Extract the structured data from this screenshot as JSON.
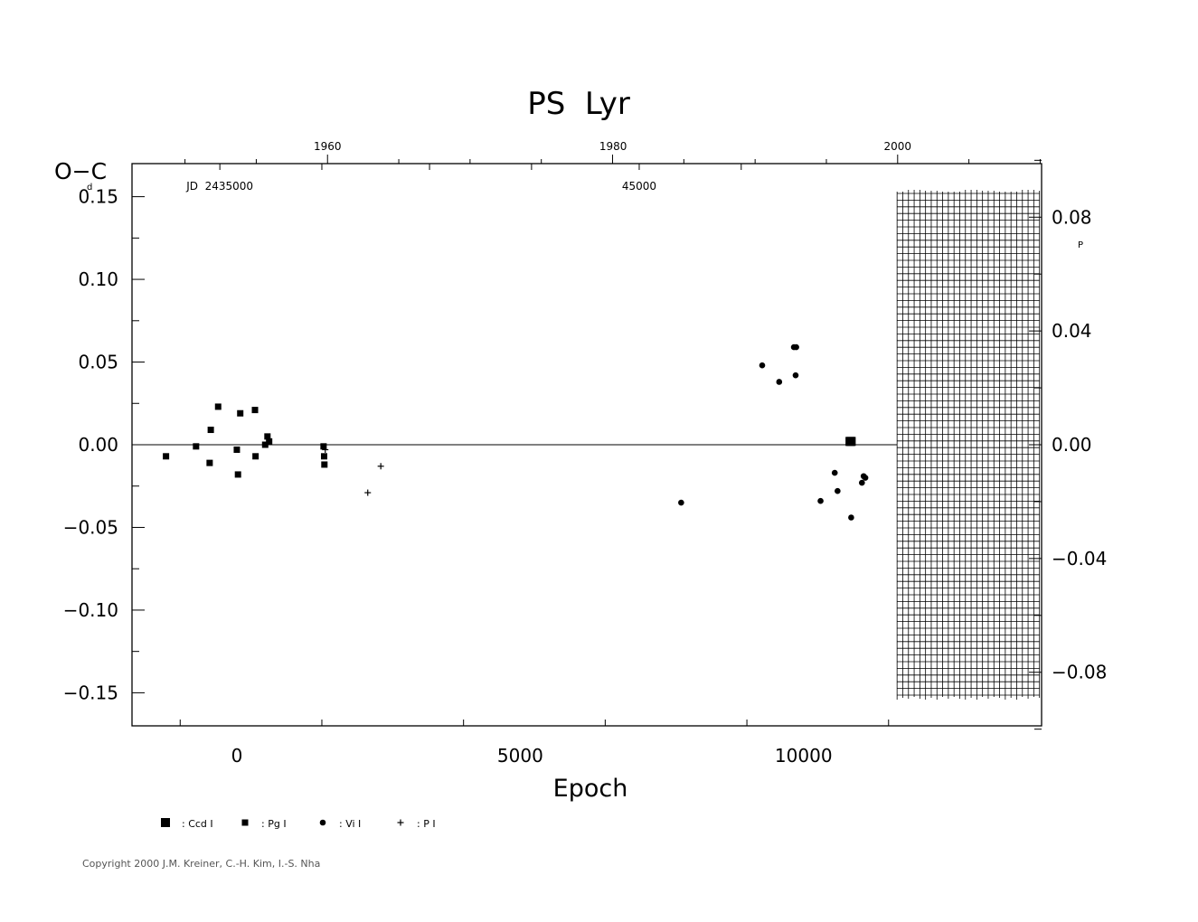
{
  "chart_data": {
    "type": "scatter",
    "title": "PS  Lyr",
    "xlabel": "Epoch",
    "ylabel": "O−C",
    "ylabel_unit_left": "d",
    "ylabel_unit_right": "P",
    "xlim": [
      -1850,
      14200
    ],
    "ylim": [
      -0.17,
      0.17
    ],
    "x_ticks": [
      0,
      5000,
      10000
    ],
    "x_tick_labels": [
      "0",
      "5000",
      "10000"
    ],
    "y_ticks": [
      0.15,
      0.1,
      0.05,
      0.0,
      -0.05,
      -0.1,
      -0.15
    ],
    "y_tick_labels": [
      "0.15",
      "0.10",
      "0.05",
      "0.00",
      "−0.05",
      "−0.10",
      "−0.15"
    ],
    "right_axis": {
      "ticks": [
        0.08,
        0.04,
        0.0,
        -0.04,
        -0.08
      ],
      "tick_labels": [
        "0.08",
        "0.04",
        "0.00",
        "−0.04",
        "−0.08"
      ],
      "ratio_days_per_phase": 1.72
    },
    "top_axis_years": {
      "labels": [
        "1960",
        "1980",
        "2000"
      ],
      "epochs": [
        1600,
        6640,
        11660
      ]
    },
    "top_axis_jd": {
      "labels": [
        "JD  2435000",
        "45000"
      ],
      "epochs": [
        -300,
        7100
      ]
    },
    "zero_line": true,
    "future_grid_start_epoch": 11650,
    "series": [
      {
        "name": "Ccd I",
        "marker": "large-square",
        "points": [
          [
            10820,
            0.002
          ],
          [
            10840,
            0.002
          ]
        ]
      },
      {
        "name": "Pg I",
        "marker": "small-square",
        "points": [
          [
            -1250,
            -0.007
          ],
          [
            -720,
            -0.001
          ],
          [
            -480,
            -0.011
          ],
          [
            -460,
            0.009
          ],
          [
            -330,
            0.023
          ],
          [
            0,
            -0.003
          ],
          [
            20,
            -0.018
          ],
          [
            60,
            0.019
          ],
          [
            320,
            0.021
          ],
          [
            330,
            -0.007
          ],
          [
            500,
            0.0
          ],
          [
            540,
            0.005
          ],
          [
            570,
            0.002
          ],
          [
            1530,
            -0.001
          ],
          [
            1540,
            -0.007
          ],
          [
            1545,
            -0.012
          ]
        ]
      },
      {
        "name": "Vi I",
        "marker": "dot",
        "points": [
          [
            7840,
            -0.035
          ],
          [
            9270,
            0.048
          ],
          [
            9570,
            0.038
          ],
          [
            9830,
            0.059
          ],
          [
            9870,
            0.059
          ],
          [
            9860,
            0.042
          ],
          [
            10300,
            -0.034
          ],
          [
            10550,
            -0.017
          ],
          [
            10600,
            -0.028
          ],
          [
            10840,
            -0.044
          ],
          [
            11030,
            -0.023
          ],
          [
            11060,
            -0.019
          ],
          [
            11090,
            -0.02
          ]
        ]
      },
      {
        "name": "P I",
        "marker": "plus",
        "points": [
          [
            1560,
            -0.003
          ],
          [
            2310,
            -0.029
          ],
          [
            2540,
            -0.013
          ]
        ]
      }
    ],
    "legend": {
      "position": "bottom-left",
      "entries": [
        ": Ccd I",
        ": Pg I",
        ": Vi I",
        ": P I"
      ]
    }
  },
  "copyright": "Copyright 2000 J.M. Kreiner, C.-H. Kim, I.-S. Nha"
}
